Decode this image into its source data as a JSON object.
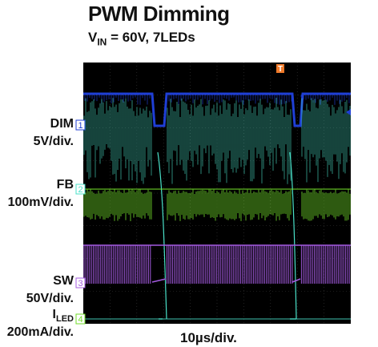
{
  "chart_data": {
    "type": "line",
    "title": "PWM Dimming",
    "subtitle": {
      "prefix": "V",
      "sub": "IN",
      "suffix": " = 60V, 7LEDs"
    },
    "xlabel": "10µs/div.",
    "x_divisions": 10,
    "y_divisions": 8,
    "grid": true,
    "trigger_marker": "T",
    "channels": [
      {
        "id": "1",
        "name": "DIM",
        "scale": "5V/div.",
        "color": "#1f3fd6"
      },
      {
        "id": "2",
        "name": "FB",
        "scale": "100mV/div.",
        "color": "#72dd2a"
      },
      {
        "id": "3",
        "name": "SW",
        "scale": "50V/div.",
        "color": "#a45be0"
      },
      {
        "id": "4",
        "name_prefix": "I",
        "name_sub": "LED",
        "scale": "200mA/div.",
        "color": "#49e0c8"
      }
    ]
  }
}
